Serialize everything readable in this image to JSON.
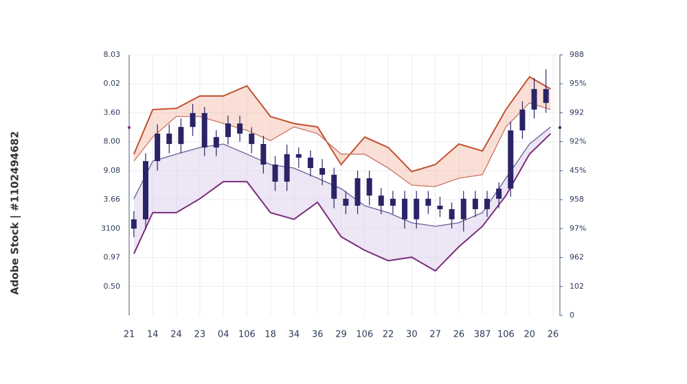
{
  "watermark": "Adobe Stock | #1102494682",
  "chart_data": {
    "type": "candlestick",
    "xlim": [
      0,
      18
    ],
    "xticks": [
      {
        "value": 0,
        "label": "21"
      },
      {
        "value": 1,
        "label": "14"
      },
      {
        "value": 2,
        "label": "24"
      },
      {
        "value": 3,
        "label": "23"
      },
      {
        "value": 4,
        "label": "04"
      },
      {
        "value": 5,
        "label": "106"
      },
      {
        "value": 6,
        "label": "18"
      },
      {
        "value": 7,
        "label": "34"
      },
      {
        "value": 8,
        "label": "36"
      },
      {
        "value": 9,
        "label": "29"
      },
      {
        "value": 10,
        "label": "106"
      },
      {
        "value": 11,
        "label": "22"
      },
      {
        "value": 12,
        "label": "30"
      },
      {
        "value": 13,
        "label": "27"
      },
      {
        "value": 14,
        "label": "26"
      },
      {
        "value": 15,
        "label": "387"
      },
      {
        "value": 16,
        "label": "106"
      },
      {
        "value": 17,
        "label": "20"
      },
      {
        "value": 18,
        "label": "26"
      }
    ],
    "ylim": [
      0,
      9
    ],
    "yticks": [
      {
        "value": 1,
        "label": "0.50"
      },
      {
        "value": 2,
        "label": "0.97"
      },
      {
        "value": 3,
        "label": "3100"
      },
      {
        "value": 4,
        "label": "3.66"
      },
      {
        "value": 5,
        "label": "9.08"
      },
      {
        "value": 6,
        "label": "8.00"
      },
      {
        "value": 7,
        "label": "3.60"
      },
      {
        "value": 8,
        "label": "0.02"
      },
      {
        "value": 9,
        "label": "8.03"
      }
    ],
    "y2lim": [
      0,
      9
    ],
    "y2ticks": [
      0,
      {
        "value": 1,
        "label": "102"
      },
      {
        "value": 2,
        "label": "962"
      },
      {
        "value": 3,
        "label": "97%"
      },
      {
        "value": 4,
        "label": "958"
      },
      {
        "value": 5,
        "label": "45%"
      },
      {
        "value": 6,
        "label": "92%"
      },
      {
        "value": 7,
        "label": "992"
      },
      {
        "value": 8,
        "label": "95%"
      },
      {
        "value": 9,
        "label": "988"
      }
    ],
    "grid": true,
    "candle_color": "#2a2466",
    "candles": {
      "x": [
        0.2,
        0.7,
        1.2,
        1.7,
        2.2,
        2.7,
        3.2,
        3.7,
        4.2,
        4.7,
        5.2,
        5.7,
        6.2,
        6.7,
        7.2,
        7.7,
        8.2,
        8.7,
        9.2,
        9.7,
        10.2,
        10.7,
        11.2,
        11.7,
        12.2,
        12.7,
        13.2,
        13.7,
        14.2,
        14.7,
        15.2,
        15.7,
        16.2,
        16.7,
        17.2,
        17.7
      ],
      "open": [
        3.0,
        3.32,
        5.33,
        6.28,
        5.92,
        6.51,
        6.99,
        5.8,
        6.16,
        6.63,
        6.28,
        5.92,
        5.21,
        4.62,
        5.57,
        5.45,
        5.09,
        4.86,
        4.03,
        3.79,
        4.74,
        4.14,
        3.79,
        4.03,
        3.32,
        4.03,
        3.79,
        3.67,
        3.32,
        4.03,
        3.67,
        4.03,
        4.38,
        6.39,
        7.11,
        7.82
      ],
      "high": [
        3.6,
        5.6,
        6.6,
        6.6,
        6.8,
        7.3,
        7.2,
        6.4,
        6.9,
        6.9,
        6.5,
        6.2,
        5.5,
        5.9,
        5.8,
        5.7,
        5.4,
        5.1,
        4.3,
        5.0,
        5.0,
        4.4,
        4.3,
        4.3,
        4.3,
        4.3,
        4.1,
        3.9,
        4.3,
        4.3,
        4.3,
        4.6,
        6.7,
        7.4,
        8.2,
        8.5
      ],
      "low": [
        2.7,
        3.0,
        5.0,
        5.6,
        5.6,
        6.2,
        5.5,
        5.5,
        5.9,
        6.0,
        5.6,
        4.9,
        4.3,
        4.3,
        5.1,
        4.8,
        4.5,
        3.7,
        3.5,
        3.5,
        3.8,
        3.5,
        3.5,
        3.0,
        3.0,
        3.5,
        3.4,
        3.0,
        2.9,
        3.4,
        3.4,
        3.7,
        4.1,
        6.1,
        6.8,
        7.0
      ],
      "close": [
        3.32,
        5.33,
        6.28,
        5.92,
        6.51,
        6.99,
        5.8,
        6.16,
        6.63,
        6.28,
        5.92,
        5.21,
        4.62,
        5.57,
        5.45,
        5.09,
        4.86,
        4.03,
        3.79,
        4.74,
        4.14,
        3.79,
        4.03,
        3.32,
        4.03,
        3.79,
        3.67,
        3.32,
        4.03,
        3.67,
        4.03,
        4.38,
        6.39,
        7.11,
        7.82,
        7.34
      ]
    },
    "x": [
      0.2,
      1,
      2,
      3,
      4,
      5,
      6,
      7,
      8,
      9,
      10,
      11,
      12,
      13,
      14,
      15,
      16,
      17,
      17.9
    ],
    "series": [
      {
        "color": "#c0502e",
        "values": [
          5.57,
          7.11,
          7.15,
          7.58,
          7.58,
          7.93,
          6.87,
          6.63,
          6.51,
          5.21,
          6.16,
          5.8,
          4.97,
          5.21,
          5.92,
          5.68,
          7.11,
          8.24,
          7.82
        ]
      },
      {
        "color": "#c8735e",
        "values": [
          5.33,
          6.16,
          6.87,
          6.87,
          6.63,
          6.39,
          6.04,
          6.51,
          6.28,
          5.57,
          5.57,
          5.09,
          4.5,
          4.45,
          4.74,
          4.86,
          6.51,
          7.34,
          7.11
        ]
      },
      {
        "color": "#6a5a9a",
        "values": [
          4.03,
          5.33,
          5.57,
          5.8,
          5.92,
          5.57,
          5.21,
          5.09,
          4.74,
          4.38,
          3.79,
          3.55,
          3.2,
          3.08,
          3.2,
          3.55,
          4.74,
          5.92,
          6.51
        ]
      },
      {
        "color": "#7b2a78",
        "values": [
          2.13,
          3.55,
          3.55,
          4.03,
          4.62,
          4.62,
          3.55,
          3.32,
          3.91,
          2.72,
          2.25,
          1.89,
          2.01,
          1.54,
          2.37,
          3.08,
          4.14,
          5.57,
          6.28
        ]
      }
    ]
  }
}
